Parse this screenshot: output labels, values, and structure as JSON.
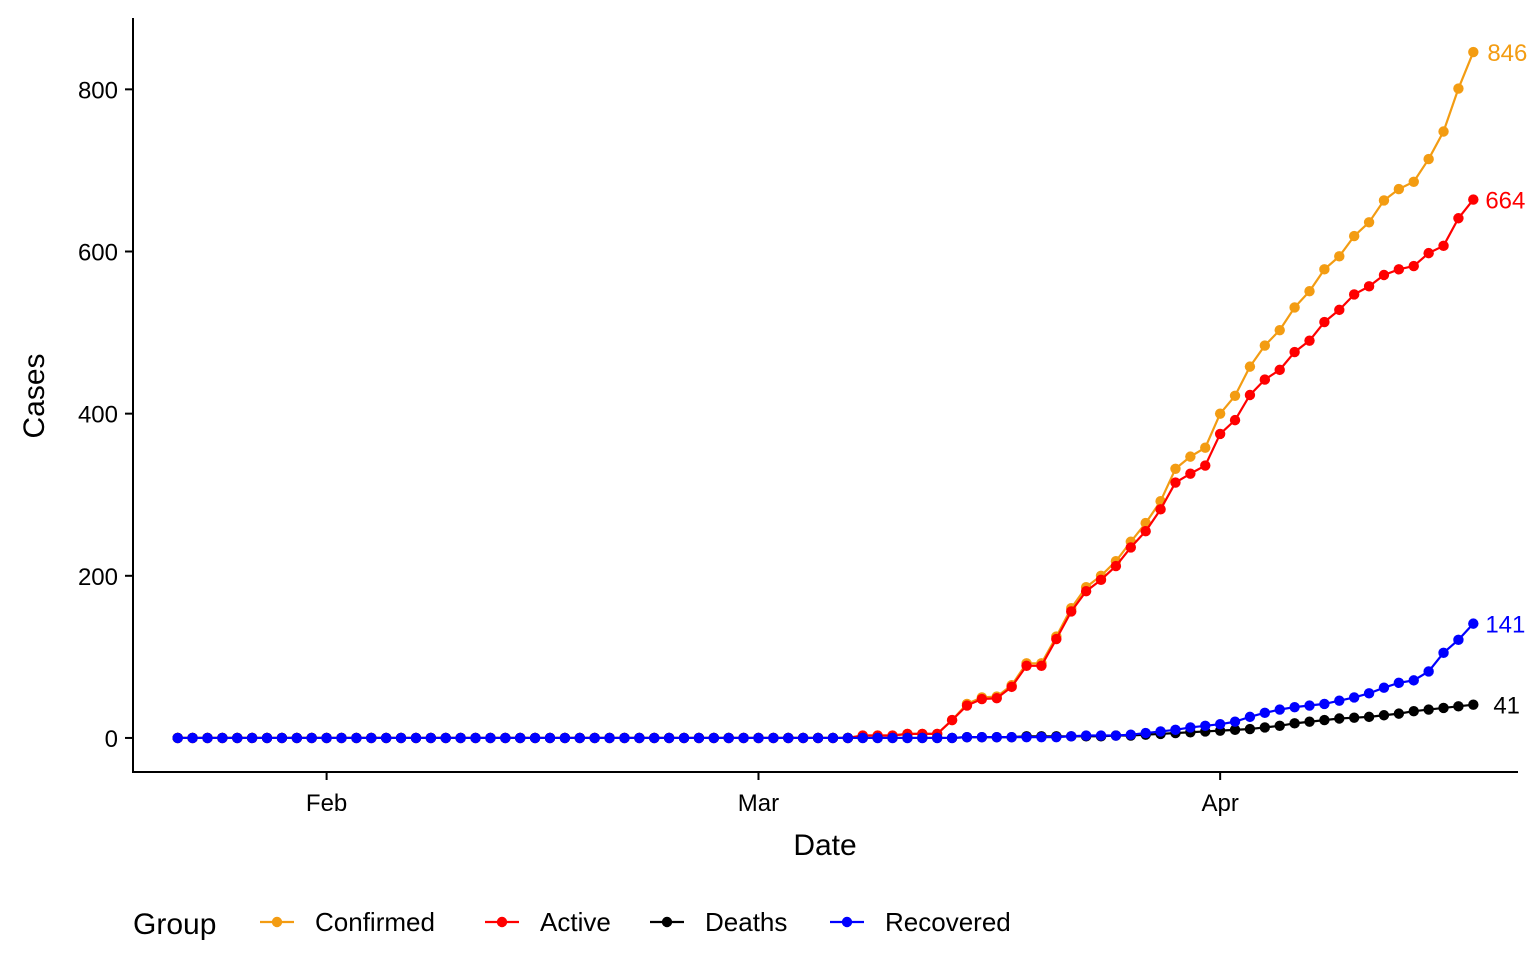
{
  "chart_data": {
    "type": "line",
    "xlabel": "Date",
    "ylabel": "Cases",
    "x_start": "2020-01-22",
    "x_end": "2020-04-16",
    "xlim": [
      "2020-01-19",
      "2020-04-21"
    ],
    "ylim": [
      -42,
      888
    ],
    "x_ticks": [
      {
        "date": "2020-02-01",
        "label": "Feb"
      },
      {
        "date": "2020-03-01",
        "label": "Mar"
      },
      {
        "date": "2020-04-01",
        "label": "Apr"
      }
    ],
    "y_ticks": [
      0,
      200,
      400,
      600,
      800
    ],
    "grid": false,
    "legend": {
      "title": "Group",
      "position": "bottom"
    },
    "series": [
      {
        "name": "Confirmed",
        "color": "#F39C12",
        "end_label": "846",
        "values": [
          0,
          0,
          0,
          0,
          0,
          0,
          0,
          0,
          0,
          0,
          0,
          0,
          0,
          0,
          0,
          0,
          0,
          0,
          0,
          0,
          0,
          0,
          0,
          0,
          0,
          0,
          0,
          0,
          0,
          0,
          0,
          0,
          0,
          0,
          0,
          0,
          0,
          0,
          0,
          0,
          0,
          0,
          0,
          0,
          0,
          0,
          3,
          3,
          3,
          5,
          5,
          5,
          22,
          42,
          50,
          51,
          65,
          92,
          92,
          125,
          160,
          186,
          200,
          218,
          242,
          265,
          292,
          332,
          347,
          358,
          400,
          422,
          458,
          484,
          503,
          531,
          551,
          578,
          594,
          619,
          636,
          663,
          677,
          686,
          714,
          748,
          801,
          846
        ]
      },
      {
        "name": "Active",
        "color": "#FF0000",
        "end_label": "664",
        "values": [
          0,
          0,
          0,
          0,
          0,
          0,
          0,
          0,
          0,
          0,
          0,
          0,
          0,
          0,
          0,
          0,
          0,
          0,
          0,
          0,
          0,
          0,
          0,
          0,
          0,
          0,
          0,
          0,
          0,
          0,
          0,
          0,
          0,
          0,
          0,
          0,
          0,
          0,
          0,
          0,
          0,
          0,
          0,
          0,
          0,
          0,
          3,
          3,
          3,
          5,
          5,
          5,
          22,
          40,
          48,
          49,
          63,
          89,
          89,
          122,
          156,
          181,
          195,
          212,
          235,
          255,
          282,
          315,
          326,
          336,
          375,
          392,
          423,
          442,
          454,
          476,
          490,
          513,
          528,
          547,
          557,
          571,
          578,
          582,
          598,
          607,
          641,
          664
        ]
      },
      {
        "name": "Deaths",
        "color": "#000000",
        "end_label": "41",
        "values": [
          0,
          0,
          0,
          0,
          0,
          0,
          0,
          0,
          0,
          0,
          0,
          0,
          0,
          0,
          0,
          0,
          0,
          0,
          0,
          0,
          0,
          0,
          0,
          0,
          0,
          0,
          0,
          0,
          0,
          0,
          0,
          0,
          0,
          0,
          0,
          0,
          0,
          0,
          0,
          0,
          0,
          0,
          0,
          0,
          0,
          0,
          0,
          0,
          0,
          0,
          0,
          0,
          0,
          1,
          1,
          1,
          1,
          2,
          2,
          2,
          2,
          2,
          2,
          3,
          3,
          4,
          5,
          6,
          7,
          8,
          9,
          10,
          11,
          13,
          15,
          18,
          20,
          22,
          24,
          25,
          26,
          28,
          30,
          33,
          35,
          37,
          39,
          41
        ]
      },
      {
        "name": "Recovered",
        "color": "#0000FF",
        "end_label": "141",
        "values": [
          0,
          0,
          0,
          0,
          0,
          0,
          0,
          0,
          0,
          0,
          0,
          0,
          0,
          0,
          0,
          0,
          0,
          0,
          0,
          0,
          0,
          0,
          0,
          0,
          0,
          0,
          0,
          0,
          0,
          0,
          0,
          0,
          0,
          0,
          0,
          0,
          0,
          0,
          0,
          0,
          0,
          0,
          0,
          0,
          0,
          0,
          0,
          0,
          0,
          0,
          0,
          0,
          0,
          1,
          1,
          1,
          1,
          1,
          1,
          1,
          2,
          3,
          3,
          3,
          4,
          6,
          8,
          10,
          13,
          15,
          17,
          20,
          26,
          31,
          35,
          38,
          40,
          42,
          46,
          50,
          55,
          62,
          68,
          71,
          82,
          105,
          121,
          141
        ]
      }
    ]
  }
}
